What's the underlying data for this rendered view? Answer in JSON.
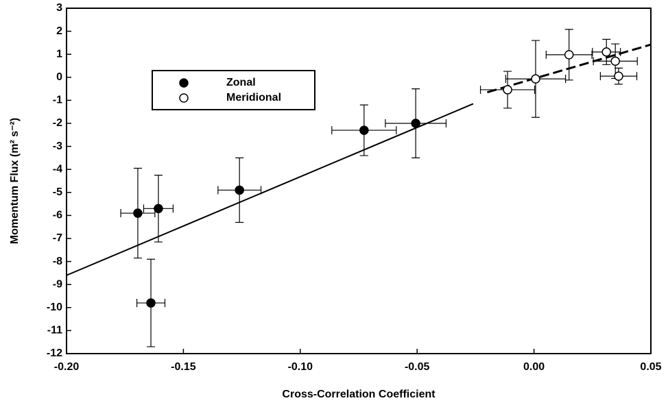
{
  "chart_data": {
    "type": "scatter",
    "xlabel": "Cross-Correlation Coefficient",
    "ylabel": "Momentum Flux (m² s⁻²)",
    "xlim": [
      -0.2,
      0.05
    ],
    "ylim": [
      -12,
      3
    ],
    "xticks": [
      {
        "value": -0.2,
        "label": "-0.20"
      },
      {
        "value": -0.15,
        "label": "-0.15"
      },
      {
        "value": -0.1,
        "label": "-0.10"
      },
      {
        "value": -0.05,
        "label": "-0.05"
      },
      {
        "value": 0,
        "label": "0.00"
      },
      {
        "value": 0.05,
        "label": "0.05"
      }
    ],
    "yticks": [
      -12,
      -11,
      -10,
      -9,
      -8,
      -7,
      -6,
      -5,
      -4,
      -3,
      -2,
      -1,
      0,
      1,
      2,
      3
    ],
    "legend": "upper left",
    "series": [
      {
        "name": "Zonal",
        "color": "#000000",
        "filled": true,
        "x": [
          -0.1695,
          -0.1607,
          -0.1639,
          -0.126,
          -0.0727,
          -0.0506
        ],
        "values": [
          -5.9,
          -5.7,
          -9.8,
          -4.9,
          -2.3,
          -2.0
        ],
        "xerr": [
          0.0073,
          0.0063,
          0.006,
          0.0092,
          0.0138,
          0.013
        ],
        "yerr": [
          1.95,
          1.45,
          1.9,
          1.4,
          1.1,
          1.5
        ]
      },
      {
        "name": "Meridional",
        "color": "#000000",
        "filled": false,
        "x": [
          -0.0113,
          0.0007,
          0.015,
          0.031,
          0.0348,
          0.0362
        ],
        "values": [
          -0.54,
          -0.07,
          0.98,
          1.1,
          0.7,
          0.05
        ],
        "xerr": [
          0.0116,
          0.0128,
          0.0098,
          0.006,
          0.0094,
          0.0078
        ],
        "yerr": [
          0.8,
          1.67,
          1.1,
          0.55,
          0.75,
          0.35
        ]
      }
    ],
    "fit_lines": [
      {
        "dashed": false,
        "x": [
          -0.2,
          -0.026
        ],
        "values": [
          -8.6,
          -1.15
        ]
      },
      {
        "dashed": true,
        "x": [
          -0.02,
          0.05
        ],
        "values": [
          -0.65,
          1.42
        ]
      }
    ]
  }
}
